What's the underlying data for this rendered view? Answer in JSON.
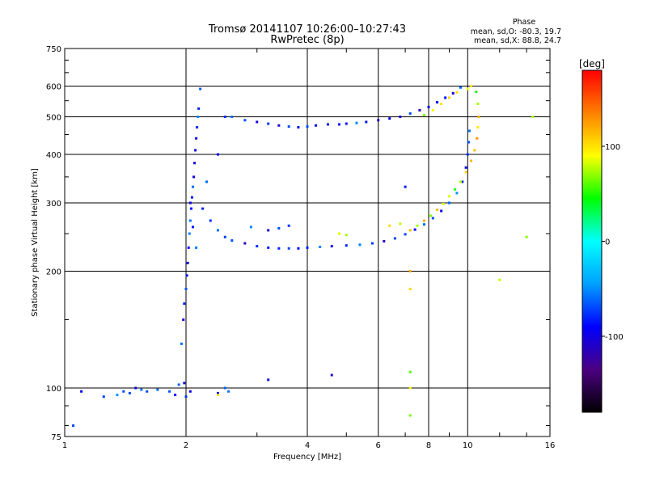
{
  "chart_data": {
    "type": "scatter",
    "title": "Tromsø 20141107 10:26:00–10:27:43",
    "subtitle": "RwPretec (8p)",
    "xlabel": "Frequency [MHz]",
    "ylabel": "Stationary phase Virtual Height [km]",
    "x_scale": "log",
    "y_scale": "log",
    "xlim": [
      1,
      16
    ],
    "ylim": [
      75,
      750
    ],
    "x_ticks": [
      1,
      2,
      4,
      6,
      8,
      10,
      16
    ],
    "x_tick_labels": [
      "1",
      "2",
      "4",
      "6",
      "8",
      "10",
      "16"
    ],
    "y_ticks": [
      75,
      100,
      200,
      300,
      400,
      500,
      600,
      750
    ],
    "y_tick_labels": [
      "75",
      "100",
      "200",
      "300",
      "400",
      "500",
      "600",
      "750"
    ],
    "grid": true,
    "stats": {
      "title": "Phase",
      "line_o": "mean, sd,O: -80.3, 19.7",
      "line_x": "mean, sd,X:  88.8, 24.7"
    },
    "colorbar": {
      "label": "[deg]",
      "range": [
        -180,
        180
      ],
      "ticks": [
        -100,
        0,
        100
      ],
      "tick_labels": [
        "-100",
        "0",
        "100"
      ],
      "colors": [
        "#000000",
        "#4b0082",
        "#0000ff",
        "#00a0ff",
        "#00ffff",
        "#00ff00",
        "#ffff00",
        "#ff8000",
        "#ff0000"
      ]
    },
    "series": [
      {
        "mode": "O",
        "phase_mean": -80.3,
        "phase_sd": 19.7,
        "points": [
          [
            1.05,
            80
          ],
          [
            1.1,
            98
          ],
          [
            1.25,
            95
          ],
          [
            1.35,
            96
          ],
          [
            1.4,
            98
          ],
          [
            1.45,
            97
          ],
          [
            1.5,
            100
          ],
          [
            1.55,
            99
          ],
          [
            1.6,
            98
          ],
          [
            1.7,
            99
          ],
          [
            1.82,
            98
          ],
          [
            1.88,
            96
          ],
          [
            1.92,
            102
          ],
          [
            1.98,
            103
          ],
          [
            2.0,
            95
          ],
          [
            2.05,
            98
          ],
          [
            2.4,
            97
          ],
          [
            2.5,
            100
          ],
          [
            2.55,
            98
          ],
          [
            1.95,
            130
          ],
          [
            1.97,
            150
          ],
          [
            1.98,
            165
          ],
          [
            2.0,
            180
          ],
          [
            2.01,
            195
          ],
          [
            2.02,
            210
          ],
          [
            2.03,
            230
          ],
          [
            2.04,
            250
          ],
          [
            2.05,
            270
          ],
          [
            2.06,
            290
          ],
          [
            2.07,
            310
          ],
          [
            2.08,
            330
          ],
          [
            2.09,
            350
          ],
          [
            2.1,
            380
          ],
          [
            2.11,
            410
          ],
          [
            2.12,
            440
          ],
          [
            2.13,
            470
          ],
          [
            2.14,
            500
          ],
          [
            2.15,
            525
          ],
          [
            2.17,
            590
          ],
          [
            2.05,
            300
          ],
          [
            2.08,
            260
          ],
          [
            2.12,
            230
          ],
          [
            2.25,
            340
          ],
          [
            2.4,
            400
          ],
          [
            2.5,
            500
          ],
          [
            2.6,
            500
          ],
          [
            2.8,
            490
          ],
          [
            3.0,
            485
          ],
          [
            3.2,
            480
          ],
          [
            3.4,
            475
          ],
          [
            3.6,
            472
          ],
          [
            3.8,
            470
          ],
          [
            4.0,
            472
          ],
          [
            4.2,
            475
          ],
          [
            4.5,
            478
          ],
          [
            4.8,
            478
          ],
          [
            5.0,
            480
          ],
          [
            5.3,
            482
          ],
          [
            5.6,
            485
          ],
          [
            6.0,
            490
          ],
          [
            6.4,
            495
          ],
          [
            6.8,
            500
          ],
          [
            7.2,
            510
          ],
          [
            7.6,
            520
          ],
          [
            8.0,
            530
          ],
          [
            8.4,
            545
          ],
          [
            8.8,
            560
          ],
          [
            9.2,
            575
          ],
          [
            9.6,
            595
          ],
          [
            2.2,
            290
          ],
          [
            2.3,
            270
          ],
          [
            2.4,
            255
          ],
          [
            2.5,
            245
          ],
          [
            2.6,
            240
          ],
          [
            2.8,
            236
          ],
          [
            3.0,
            232
          ],
          [
            3.2,
            230
          ],
          [
            3.4,
            229
          ],
          [
            3.6,
            229
          ],
          [
            3.8,
            229
          ],
          [
            4.0,
            230
          ],
          [
            4.3,
            231
          ],
          [
            4.6,
            232
          ],
          [
            5.0,
            233
          ],
          [
            5.4,
            234
          ],
          [
            5.8,
            236
          ],
          [
            6.2,
            239
          ],
          [
            6.6,
            243
          ],
          [
            7.0,
            249
          ],
          [
            7.4,
            256
          ],
          [
            7.8,
            264
          ],
          [
            8.2,
            274
          ],
          [
            8.6,
            286
          ],
          [
            9.0,
            300
          ],
          [
            9.4,
            318
          ],
          [
            9.7,
            340
          ],
          [
            9.9,
            370
          ],
          [
            10.0,
            400
          ],
          [
            10.05,
            430
          ],
          [
            10.1,
            460
          ],
          [
            3.6,
            262
          ],
          [
            3.4,
            258
          ],
          [
            3.2,
            255
          ],
          [
            2.9,
            260
          ],
          [
            4.6,
            108
          ],
          [
            3.2,
            105
          ],
          [
            7.0,
            330
          ]
        ]
      },
      {
        "mode": "X",
        "phase_mean": 88.8,
        "phase_sd": 24.7,
        "points": [
          [
            7.2,
            255
          ],
          [
            7.5,
            262
          ],
          [
            7.8,
            270
          ],
          [
            8.1,
            278
          ],
          [
            8.4,
            288
          ],
          [
            8.7,
            298
          ],
          [
            9.0,
            312
          ],
          [
            9.3,
            325
          ],
          [
            9.6,
            340
          ],
          [
            9.9,
            360
          ],
          [
            10.2,
            385
          ],
          [
            10.4,
            410
          ],
          [
            10.55,
            440
          ],
          [
            10.6,
            470
          ],
          [
            10.65,
            500
          ],
          [
            10.6,
            540
          ],
          [
            10.5,
            580
          ],
          [
            7.8,
            505
          ],
          [
            8.2,
            520
          ],
          [
            8.6,
            540
          ],
          [
            9.0,
            560
          ],
          [
            9.4,
            578
          ],
          [
            10.0,
            590
          ],
          [
            10.2,
            600
          ],
          [
            7.2,
            200
          ],
          [
            7.2,
            180
          ],
          [
            7.2,
            110
          ],
          [
            7.2,
            100
          ],
          [
            7.2,
            85
          ],
          [
            2.4,
            96
          ],
          [
            4.8,
            250
          ],
          [
            5.0,
            248
          ],
          [
            6.4,
            262
          ],
          [
            6.8,
            265
          ],
          [
            12.0,
            190
          ],
          [
            14.0,
            245
          ],
          [
            14.5,
            500
          ]
        ]
      }
    ]
  }
}
